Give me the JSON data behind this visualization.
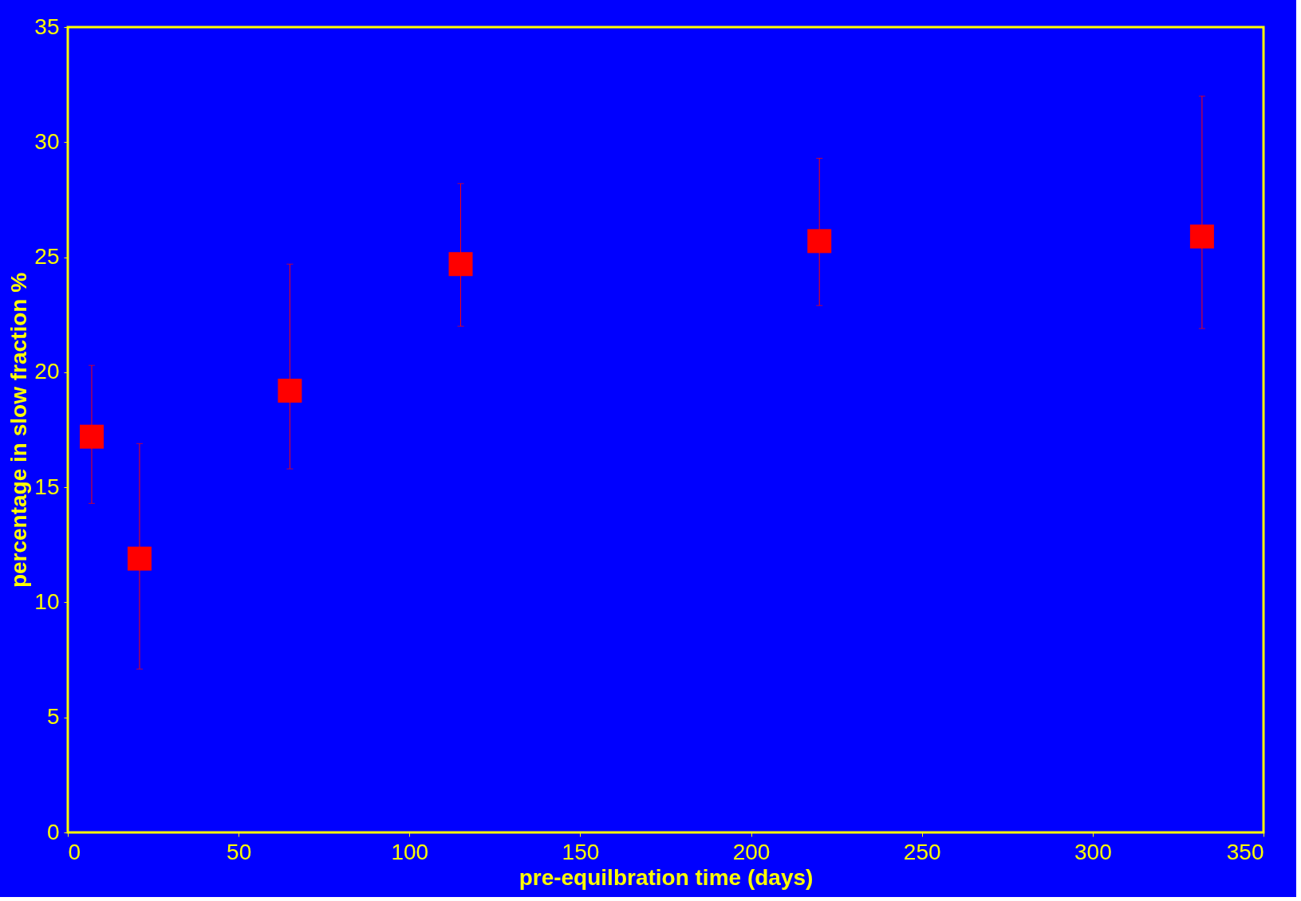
{
  "chart_data": {
    "type": "scatter",
    "xlabel": "pre-equilbration time (days)",
    "ylabel": "percentage in slow fraction %",
    "x": [
      7,
      21,
      65,
      115,
      220,
      332
    ],
    "series": [
      {
        "color": "#ff0000",
        "values": [
          17.2,
          11.9,
          19.2,
          24.7,
          25.7,
          25.9
        ],
        "errors": [
          [
            14.3,
            20.3
          ],
          [
            7.1,
            16.9
          ],
          [
            15.8,
            24.7
          ],
          [
            22.0,
            28.2
          ],
          [
            22.9,
            29.3
          ],
          [
            21.9,
            32.0
          ]
        ]
      }
    ],
    "xlim": [
      0,
      350
    ],
    "xticks": [
      0,
      50,
      100,
      150,
      200,
      250,
      300,
      350
    ],
    "ylim": [
      0,
      35
    ],
    "yticks": [
      0,
      5,
      10,
      15,
      20,
      25,
      30,
      35
    ],
    "marker": "square",
    "grid": false
  }
}
